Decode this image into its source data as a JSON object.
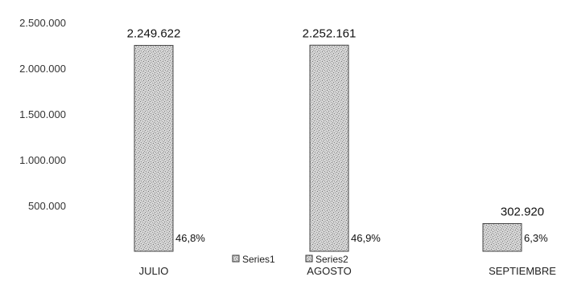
{
  "chart_data": {
    "type": "bar",
    "categories": [
      "JULIO",
      "AGOSTO",
      "SEPTIEMBRE"
    ],
    "values": [
      2249622,
      2252161,
      302920
    ],
    "value_labels": [
      "2.249.622",
      "2.252.161",
      "302.920"
    ],
    "percent_labels": [
      "46,8%",
      "46,9%",
      "6,3%"
    ],
    "ylim": [
      0,
      2500000
    ],
    "yticks": [
      500000,
      1000000,
      1500000,
      2000000,
      2500000
    ],
    "ytick_labels": [
      "500.000",
      "1.000.000",
      "1.500.000",
      "2.000.000",
      "2.500.000"
    ],
    "grid": false,
    "legend": {
      "placement": "bottom",
      "entries": [
        "Series1",
        "Series2"
      ]
    },
    "title": "",
    "xlabel": "",
    "ylabel": "",
    "colors": {
      "bar_fill": "#d0d0d0",
      "bar_texture": "#8a8a8a",
      "bar_stroke": "#444444",
      "text": "#1a1a1a"
    }
  }
}
